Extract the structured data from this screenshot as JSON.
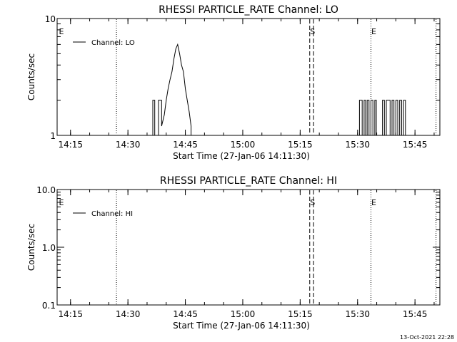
{
  "footer": {
    "timestamp": "13-Oct-2021 22:28"
  },
  "chart_data": [
    {
      "type": "line",
      "title": "RHESSI PARTICLE_RATE Channel: LO",
      "xlabel": "Start Time (27-Jan-06 14:11:30)",
      "ylabel": "Counts/sec",
      "yscale": "log",
      "ylim": [
        1,
        10
      ],
      "ytick_labels": [
        "1",
        "10"
      ],
      "xlim_minutes": [
        0,
        100
      ],
      "xtick_labels": [
        "14:15",
        "14:30",
        "14:45",
        "15:00",
        "15:15",
        "15:30",
        "15:45"
      ],
      "legend": {
        "label": "Channel: LO",
        "position": "top-left"
      },
      "markers": [
        {
          "label": "E",
          "x": 0,
          "style": "none"
        },
        {
          "label": "",
          "x": 15.5,
          "style": "dotted"
        },
        {
          "label": "S",
          "x": 66,
          "style": "dashed"
        },
        {
          "label": "",
          "x": 67,
          "style": "dashed"
        },
        {
          "label": "E",
          "x": 82,
          "style": "dotted"
        },
        {
          "label": "",
          "x": 99,
          "style": "dotted"
        }
      ],
      "series": [
        {
          "name": "Channel: LO",
          "x": [
            25,
            25,
            25.5,
            25.5,
            26.5,
            26.5,
            27.3,
            27.3,
            28,
            28.5,
            29,
            29.5,
            30,
            30.5,
            31,
            31.5,
            32,
            32.5,
            33,
            33.5,
            34,
            34.5,
            35,
            35,
            79,
            79,
            79.7,
            79.7,
            80.2,
            80.2,
            80.6,
            80.6,
            81,
            81,
            81.5,
            81.5,
            82,
            82,
            82.5,
            82.5,
            83,
            83,
            83.4,
            83.4,
            85,
            85,
            85.5,
            85.5,
            86,
            86,
            87,
            87,
            87.5,
            87.5,
            88,
            88,
            88.5,
            88.5,
            89,
            89,
            89.5,
            89.5,
            90,
            90,
            90.5,
            90.5,
            91,
            91
          ],
          "y": [
            1,
            2,
            2,
            1,
            1,
            2,
            2,
            1.2,
            1.5,
            2,
            2.5,
            3,
            3.5,
            4.5,
            5.5,
            6,
            5,
            4,
            3.5,
            2.5,
            2,
            1.6,
            1.2,
            1,
            1,
            2,
            2,
            1,
            1,
            2,
            2,
            1,
            1,
            2,
            2,
            1,
            1,
            2,
            2,
            1,
            1,
            2,
            2,
            1,
            1,
            2,
            2,
            1,
            1,
            2,
            2,
            1,
            1,
            2,
            2,
            1,
            1,
            2,
            2,
            1,
            1,
            2,
            2,
            1,
            1,
            2,
            2,
            1
          ]
        }
      ]
    },
    {
      "type": "line",
      "title": "RHESSI PARTICLE_RATE Channel: HI",
      "xlabel": "Start Time (27-Jan-06 14:11:30)",
      "ylabel": "Counts/sec",
      "yscale": "log",
      "ylim": [
        0.1,
        10
      ],
      "ytick_labels": [
        "0.1",
        "1.0",
        "10.0"
      ],
      "xlim_minutes": [
        0,
        100
      ],
      "xtick_labels": [
        "14:15",
        "14:30",
        "14:45",
        "15:00",
        "15:15",
        "15:30",
        "15:45"
      ],
      "legend": {
        "label": "Channel: HI",
        "position": "top-left"
      },
      "markers": [
        {
          "label": "E",
          "x": 0,
          "style": "none"
        },
        {
          "label": "",
          "x": 15.5,
          "style": "dotted"
        },
        {
          "label": "S",
          "x": 66,
          "style": "dashed"
        },
        {
          "label": "",
          "x": 67,
          "style": "dashed"
        },
        {
          "label": "E",
          "x": 82,
          "style": "dotted"
        },
        {
          "label": "",
          "x": 99,
          "style": "dotted"
        }
      ],
      "series": [
        {
          "name": "Channel: HI",
          "x": [],
          "y": []
        }
      ]
    }
  ]
}
